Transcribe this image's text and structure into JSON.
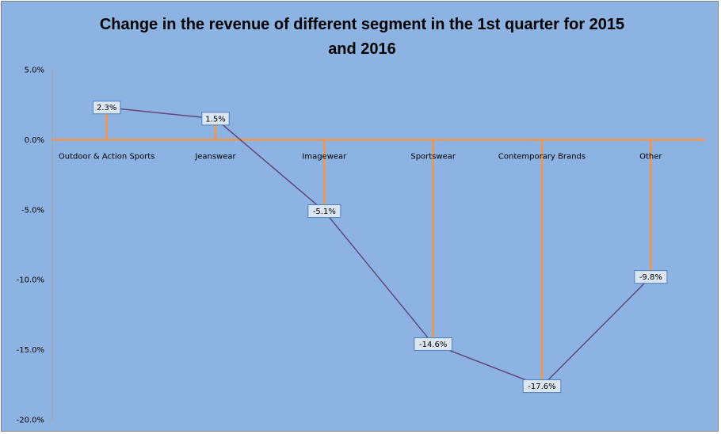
{
  "chart_data": {
    "type": "line",
    "title": "Change in the revenue of different segment in the 1st quarter for 2015 and 2016",
    "title_lines": [
      "Change in the revenue of different segment in the 1st quarter for 2015",
      "and 2016"
    ],
    "categories": [
      "Outdoor & Action Sports",
      "Jeanswear",
      "Imagewear",
      "Sportswear",
      "Contemporary Brands",
      "Other"
    ],
    "values": [
      2.3,
      1.5,
      -5.1,
      -14.6,
      -17.6,
      -9.8
    ],
    "data_labels": [
      "2.3%",
      "1.5%",
      "-5.1%",
      "-14.6%",
      "-17.6%",
      "-9.8%"
    ],
    "ylim": [
      -20,
      5
    ],
    "y_ticks": [
      5,
      0,
      -5,
      -10,
      -15,
      -20
    ],
    "y_tick_labels": [
      "5.0%",
      "0.0%",
      "-5.0%",
      "-10.0%",
      "-15.0%",
      "-20.0%"
    ],
    "xlabel": "",
    "ylabel": "",
    "grid": false,
    "legend": "none",
    "colors": {
      "background": "#8db3e2",
      "line": "#604a7b",
      "drop_lines": "#f79646",
      "label_fill": "#dce6f2",
      "label_border": "#4f81bd"
    }
  }
}
